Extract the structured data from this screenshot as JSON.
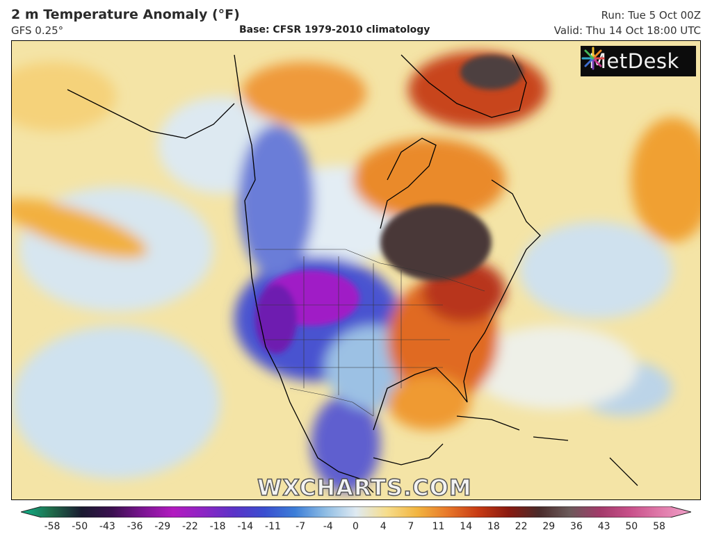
{
  "header": {
    "title": "2 m Temperature Anomaly (°F)",
    "model": "GFS 0.25°",
    "base": "Base: CFSR 1979-2010 climatology",
    "run": "Run: Tue 5 Oct 00Z",
    "valid": "Valid: Thu 14 Oct 18:00 UTC"
  },
  "logo": {
    "text": "MetDesk",
    "icon": "metdesk-burst-icon"
  },
  "watermark": "WXCHARTS.COM",
  "colorbar": {
    "tick_labels": [
      "-58",
      "-50",
      "-43",
      "-36",
      "-29",
      "-22",
      "-18",
      "-14",
      "-11",
      "-7",
      "-4",
      "0",
      "4",
      "7",
      "11",
      "14",
      "18",
      "22",
      "29",
      "36",
      "43",
      "50",
      "58"
    ],
    "colors": [
      "#0fb58c",
      "#1f6b4a",
      "#1a1a30",
      "#3b1050",
      "#7b1492",
      "#b21ac0",
      "#8c25c4",
      "#5a33c8",
      "#3a4fd0",
      "#3c7ed8",
      "#8fbde4",
      "#dfeaf2",
      "#f6dd8c",
      "#f2b540",
      "#e8782a",
      "#c83b14",
      "#8a1a10",
      "#4a2a2a",
      "#6b5a5a",
      "#a23a6a",
      "#c8508a",
      "#e07aaa",
      "#f0a0c8"
    ]
  },
  "colors": {
    "ocean_base": "#f6e8b0",
    "cold_anomaly": "#3b3fcf",
    "strong_cold_anomaly": "#c21ccc",
    "warm_anomaly": "#e8782a",
    "strong_warm_anomaly": "#4b3535",
    "neutral": "#dfeaf2",
    "coastline": "#000000"
  }
}
